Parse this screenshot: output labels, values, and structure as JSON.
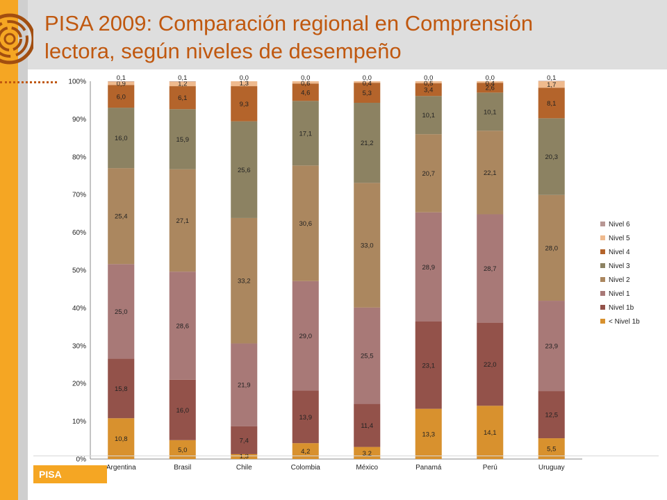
{
  "slide": {
    "title_line1": "PISA 2009: Comparación regional en Comprensión",
    "title_line2": "lectora, según niveles de desempeño",
    "footer_tag": "PISA"
  },
  "colors": {
    "accent": "#f5a623",
    "title": "#c0580f"
  },
  "chart_data": {
    "type": "bar",
    "stacked": true,
    "percent": true,
    "title": "",
    "xlabel": "",
    "ylabel": "",
    "ylim": [
      0,
      100
    ],
    "yticks": [
      "0%",
      "10%",
      "20%",
      "30%",
      "40%",
      "50%",
      "60%",
      "70%",
      "80%",
      "90%",
      "100%"
    ],
    "categories": [
      "Argentina",
      "Brasil",
      "Chile",
      "Colombia",
      "México",
      "Panamá",
      "Perú",
      "Uruguay"
    ],
    "series": [
      {
        "name": "< Nivel 1b",
        "color": "#d8912e",
        "values": [
          10.8,
          5.0,
          1.3,
          4.2,
          3.2,
          13.3,
          14.1,
          5.5
        ],
        "labels": [
          "10,8",
          "5,0",
          "1,3",
          "4,2",
          "3,2",
          "13,3",
          "14,1",
          "5,5"
        ]
      },
      {
        "name": "Nivel 1b",
        "color": "#93524a",
        "values": [
          15.8,
          16.0,
          7.4,
          13.9,
          11.4,
          23.1,
          22.0,
          12.5
        ],
        "labels": [
          "15,8",
          "16,0",
          "7,4",
          "13,9",
          "11,4",
          "23,1",
          "22,0",
          "12,5"
        ]
      },
      {
        "name": "Nivel 1",
        "color": "#a87977",
        "values": [
          25.0,
          28.6,
          21.9,
          29.0,
          25.5,
          28.9,
          28.7,
          23.9
        ],
        "labels": [
          "25,0",
          "28,6",
          "21,9",
          "29,0",
          "25,5",
          "28,9",
          "28,7",
          "23,9"
        ]
      },
      {
        "name": "Nivel 2",
        "color": "#ab875f",
        "values": [
          25.4,
          27.1,
          33.2,
          30.6,
          33.0,
          20.7,
          22.1,
          28.0
        ],
        "labels": [
          "25,4",
          "27,1",
          "33,2",
          "30,6",
          "33,0",
          "20,7",
          "22,1",
          "28,0"
        ]
      },
      {
        "name": "Nivel 3",
        "color": "#8c8262",
        "values": [
          16.0,
          15.9,
          25.6,
          17.1,
          21.2,
          10.1,
          10.1,
          20.3
        ],
        "labels": [
          "16,0",
          "15,9",
          "25,6",
          "17,1",
          "21,2",
          "10,1",
          "10,1",
          "20,3"
        ]
      },
      {
        "name": "Nivel 4",
        "color": "#b4642b",
        "values": [
          6.0,
          6.1,
          9.3,
          4.6,
          5.3,
          3.4,
          2.6,
          8.1
        ],
        "labels": [
          "6,0",
          "6,1",
          "9,3",
          "4,6",
          "5,3",
          "3,4",
          "2,6",
          "8,1"
        ]
      },
      {
        "name": "Nivel 5",
        "color": "#efba8e",
        "values": [
          0.9,
          1.2,
          1.3,
          0.6,
          0.4,
          0.5,
          0.4,
          1.7
        ],
        "labels": [
          "0,9",
          "1,2",
          "1,3",
          "0,6",
          "0,4",
          "0,5",
          "0,4",
          "1,7"
        ]
      },
      {
        "name": "Nivel 6",
        "color": "#b89794",
        "values": [
          0.1,
          0.1,
          0.0,
          0.0,
          0.0,
          0.0,
          0.0,
          0.1
        ],
        "labels": [
          "0,1",
          "0,1",
          "0,0",
          "0,0",
          "0,0",
          "0,0",
          "0,0",
          "0,1"
        ]
      }
    ],
    "legend_position": "right",
    "legend_order": [
      "Nivel 6",
      "Nivel 5",
      "Nivel 4",
      "Nivel 3",
      "Nivel 2",
      "Nivel 1",
      "Nivel 1b",
      "< Nivel 1b"
    ]
  }
}
